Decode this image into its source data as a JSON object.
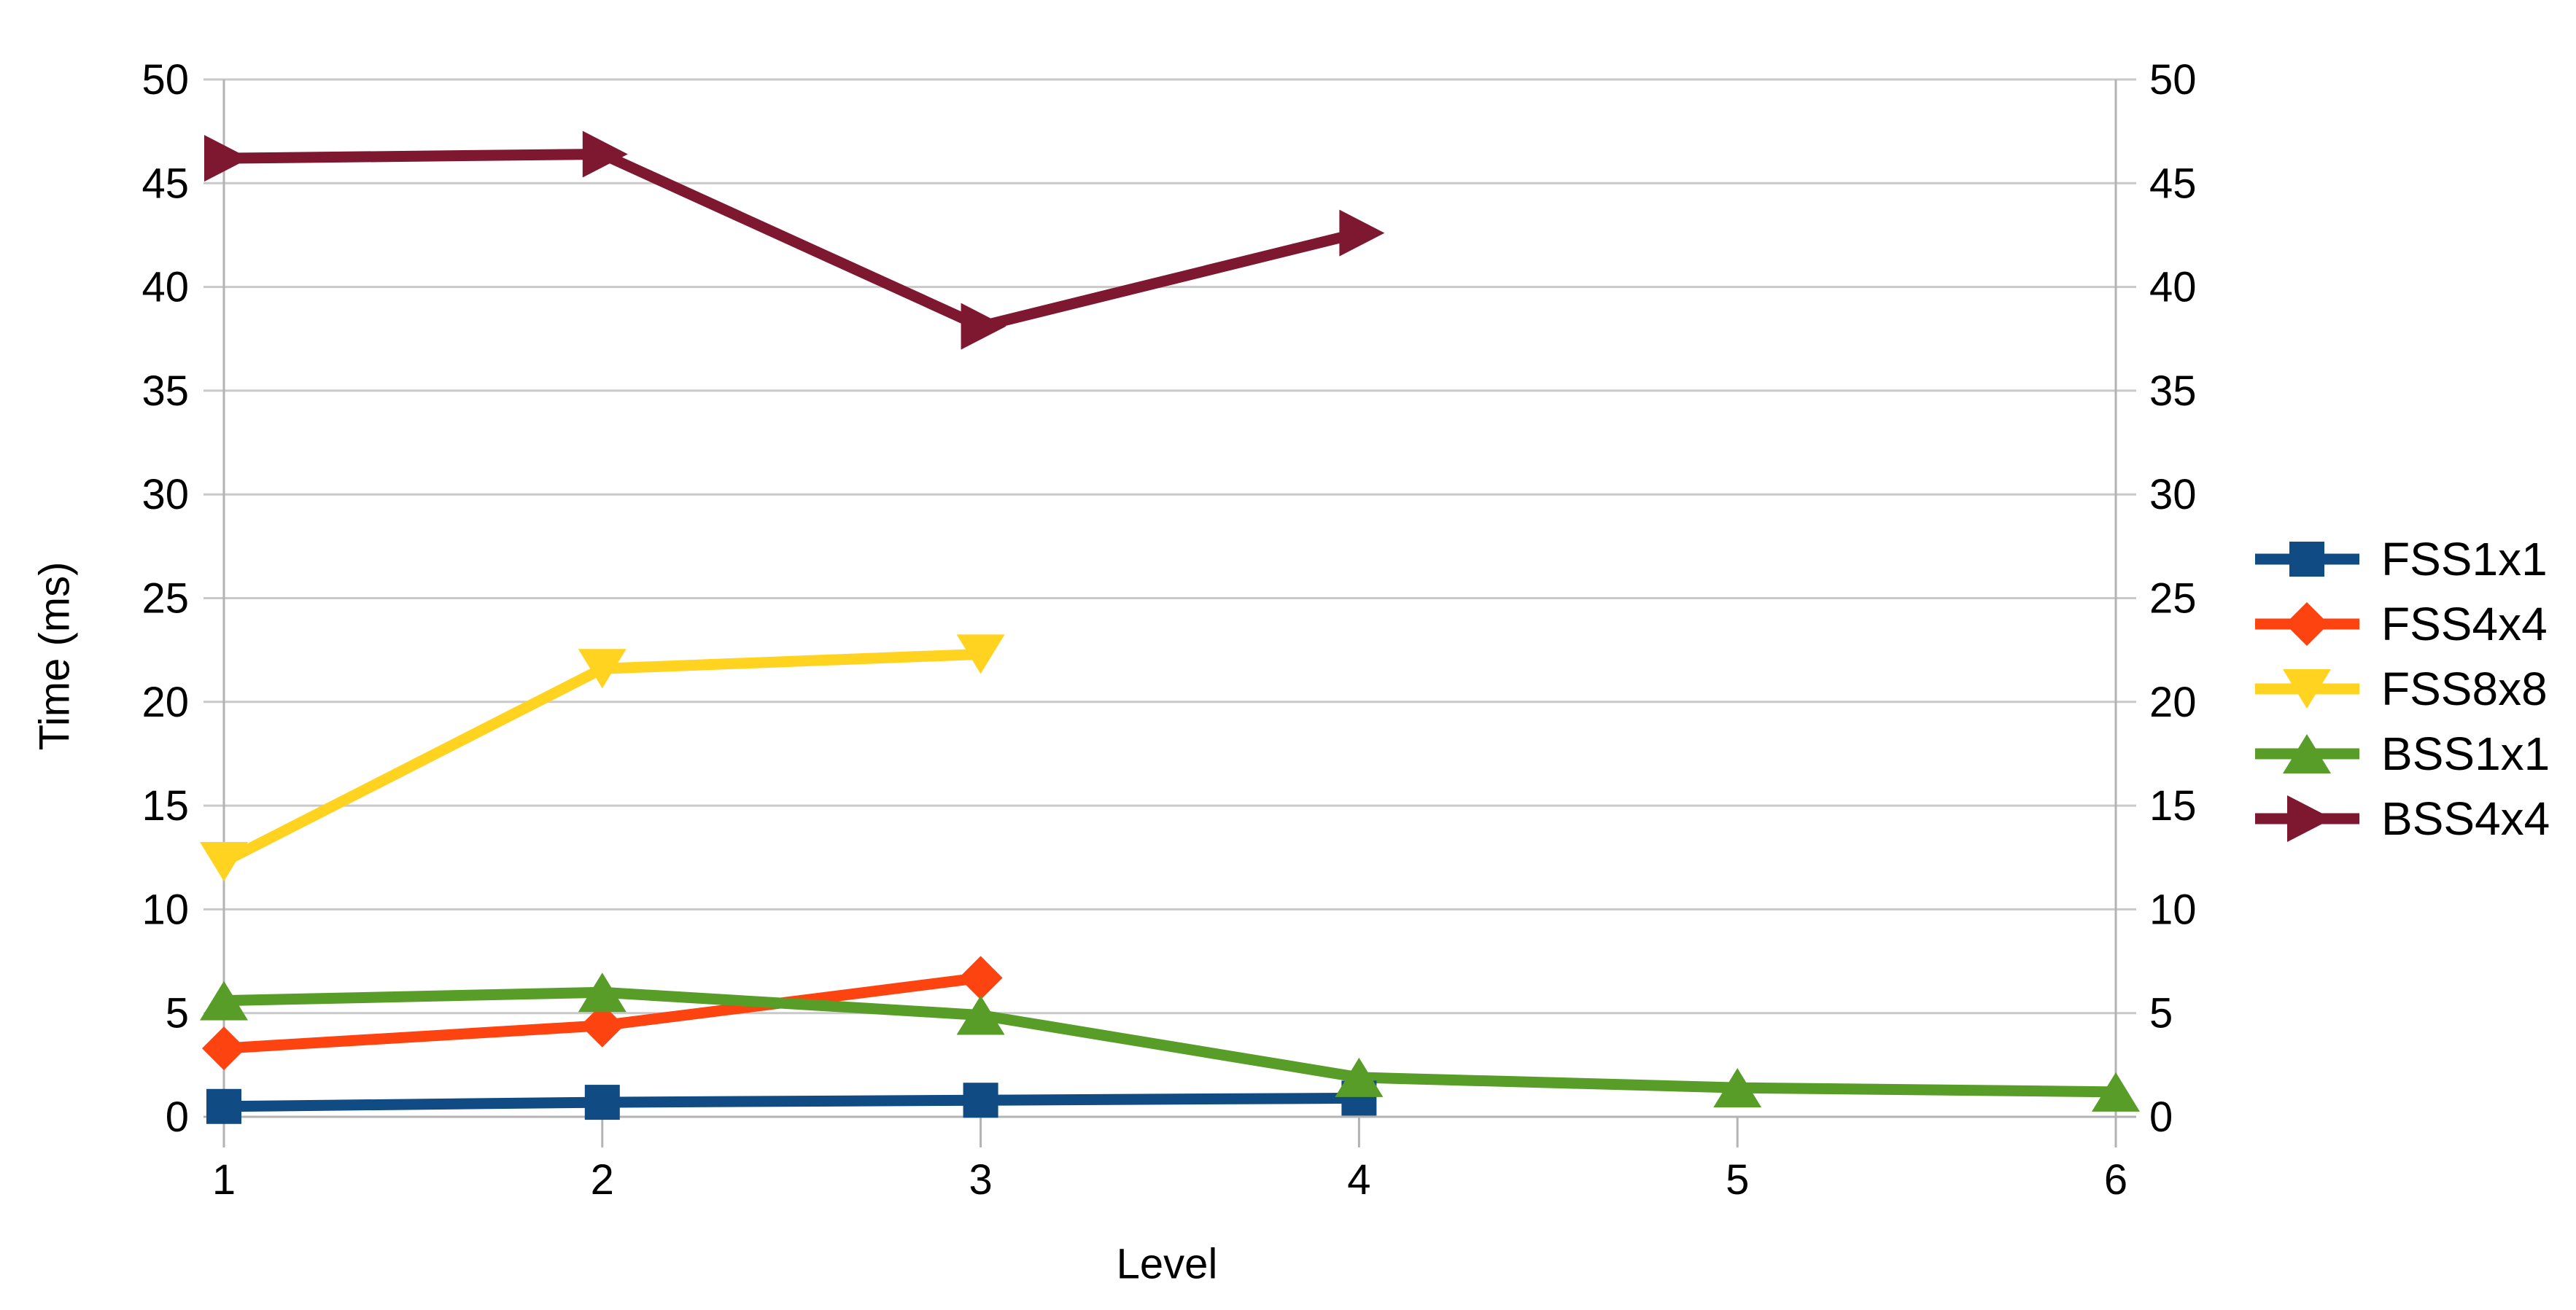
{
  "chart_data": {
    "type": "line",
    "title": "",
    "xlabel": "Level",
    "ylabel": "Time (ms)",
    "x_categories": [
      "1",
      "2",
      "3",
      "4",
      "5",
      "6"
    ],
    "xlim": [
      1,
      6
    ],
    "ylim": [
      0,
      50
    ],
    "y_ticks": [
      0,
      5,
      10,
      15,
      20,
      25,
      30,
      35,
      40,
      45,
      50
    ],
    "grid": "horizontal-only",
    "legend_position": "right",
    "duplicate_y_labels_right": true,
    "series": [
      {
        "name": "FSS1x1",
        "color": "#114B83",
        "marker": "square",
        "points": [
          [
            1,
            0.5
          ],
          [
            2,
            0.7
          ],
          [
            3,
            0.8
          ],
          [
            4,
            0.9
          ]
        ]
      },
      {
        "name": "FSS4x4",
        "color": "#FC4310",
        "marker": "diamond",
        "points": [
          [
            1,
            3.3
          ],
          [
            2,
            4.4
          ],
          [
            3,
            6.7
          ]
        ]
      },
      {
        "name": "FSS8x8",
        "color": "#FFD320",
        "marker": "triangle-down",
        "points": [
          [
            1,
            12.3
          ],
          [
            2,
            21.6
          ],
          [
            3,
            22.3
          ]
        ]
      },
      {
        "name": "BSS1x1",
        "color": "#579D28",
        "marker": "triangle-up",
        "points": [
          [
            1,
            5.6
          ],
          [
            2,
            6.0
          ],
          [
            3,
            4.9
          ],
          [
            4,
            1.9
          ],
          [
            5,
            1.4
          ],
          [
            6,
            1.2
          ]
        ]
      },
      {
        "name": "BSS4x4",
        "color": "#7E1730",
        "marker": "triangle-right",
        "points": [
          [
            1,
            46.2
          ],
          [
            2,
            46.4
          ],
          [
            3,
            38.1
          ],
          [
            4,
            42.6
          ]
        ]
      }
    ],
    "colors": {
      "gridline": "#c9c9c9",
      "axis": "#b3b3b3",
      "tick_text": "#000000",
      "background": "#ffffff"
    }
  }
}
